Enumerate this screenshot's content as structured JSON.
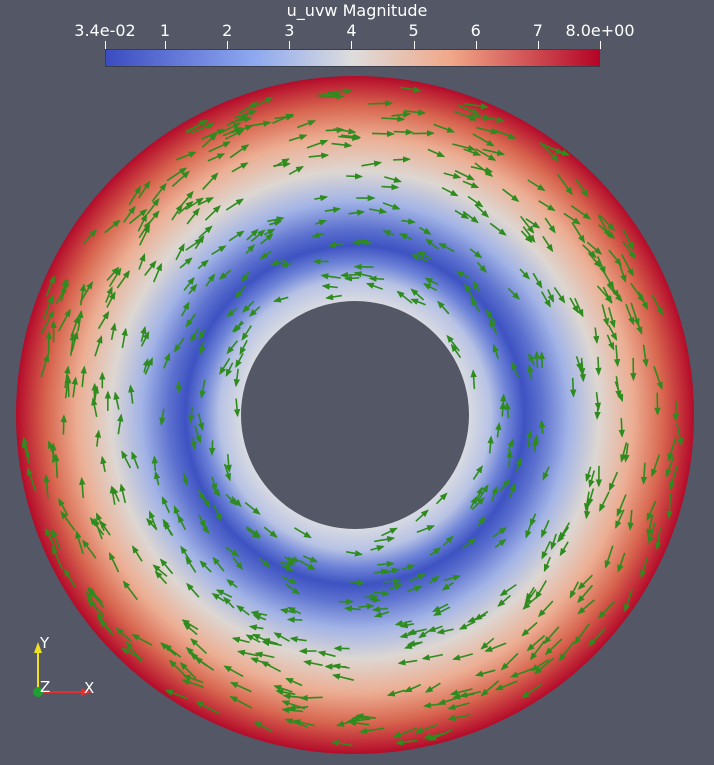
{
  "colorbar": {
    "title": "u_uvw Magnitude",
    "range": [
      0.034,
      8.0
    ],
    "ticks": [
      {
        "label": "3.4e-02",
        "value": 0.034
      },
      {
        "label": "1",
        "value": 1
      },
      {
        "label": "2",
        "value": 2
      },
      {
        "label": "3",
        "value": 3
      },
      {
        "label": "4",
        "value": 4
      },
      {
        "label": "5",
        "value": 5
      },
      {
        "label": "6",
        "value": 6
      },
      {
        "label": "7",
        "value": 7
      },
      {
        "label": "8.0e+00",
        "value": 8.0
      }
    ],
    "colors": {
      "low": "#3b4cc0",
      "mid": "#dddddd",
      "high": "#b40426"
    }
  },
  "scene": {
    "background": "#535766",
    "glyph_color": "#2e8b1e",
    "field_description_colors": [
      "#b40426",
      "#e0795e",
      "#dddddd",
      "#4a62cc",
      "#3b4cc0"
    ]
  },
  "axes": {
    "x_label": "X",
    "y_label": "Y",
    "z_label": "Z",
    "x_color": "#e03030",
    "y_color": "#f0e020",
    "z_color": "#20a030"
  }
}
